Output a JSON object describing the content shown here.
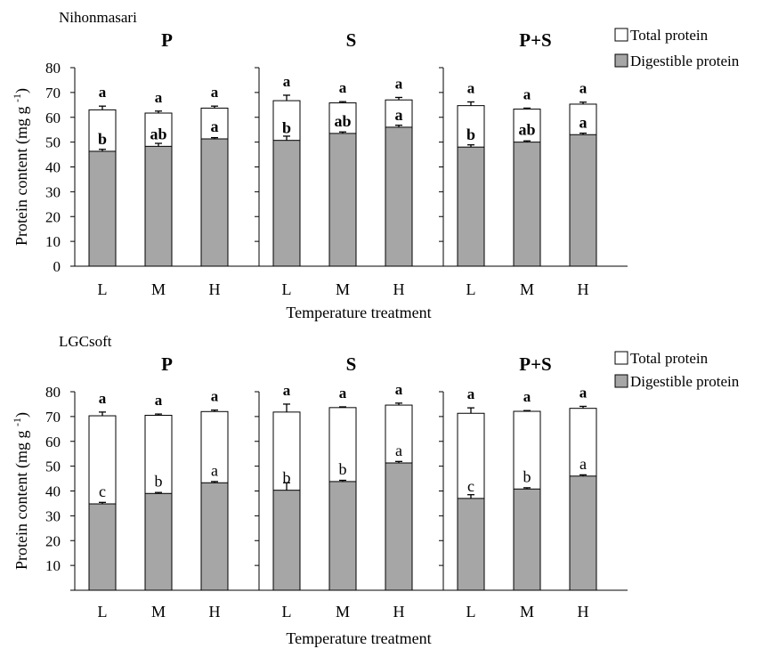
{
  "legend": {
    "total_label": "Total protein",
    "digestible_label": "Digestible protein",
    "total_color": "#ffffff",
    "digestible_color": "#a6a6a6"
  },
  "chart_data": [
    {
      "type": "bar",
      "stacked": "overlay",
      "cultivar": "Nihonmasari",
      "xlabel": "Temperature treatment",
      "ylabel": "Protein content (mg g-1)",
      "ylim": [
        0,
        80
      ],
      "yticks": [
        0,
        10,
        20,
        30,
        40,
        50,
        60,
        70,
        80
      ],
      "categories": [
        "L",
        "M",
        "H"
      ],
      "panels": [
        {
          "title": "P",
          "total": [
            63,
            61.7,
            63.7
          ],
          "total_err": [
            1.5,
            0.8,
            0.8
          ],
          "digestible": [
            46.3,
            48.3,
            51.3
          ],
          "digestible_err": [
            0.8,
            1.2,
            0.5
          ],
          "total_sig": [
            "a",
            "a",
            "a"
          ],
          "digestible_sig": [
            "b",
            "ab",
            "a"
          ]
        },
        {
          "title": "S",
          "total": [
            66.7,
            65.8,
            67
          ],
          "total_err": [
            2.2,
            0.5,
            1
          ],
          "digestible": [
            50.7,
            53.5,
            56
          ],
          "digestible_err": [
            1.7,
            0.6,
            0.8
          ],
          "total_sig": [
            "a",
            "a",
            "a"
          ],
          "digestible_sig": [
            "b",
            "ab",
            "a"
          ]
        },
        {
          "title": "P+S",
          "total": [
            64.7,
            63.3,
            65.3
          ],
          "total_err": [
            1.5,
            0.4,
            0.8
          ],
          "digestible": [
            48,
            50,
            53
          ],
          "digestible_err": [
            0.9,
            0.5,
            0.6
          ],
          "total_sig": [
            "a",
            "a",
            "a"
          ],
          "digestible_sig": [
            "b",
            "ab",
            "a"
          ]
        }
      ]
    },
    {
      "type": "bar",
      "stacked": "overlay",
      "cultivar": "LGCsoft",
      "xlabel": "Temperature treatment",
      "ylabel": "Protein content (mg g-1)",
      "ylim": [
        0,
        80
      ],
      "yticks": [
        10,
        20,
        30,
        40,
        50,
        60,
        70,
        80
      ],
      "categories": [
        "L",
        "M",
        "H"
      ],
      "panels": [
        {
          "title": "P",
          "total": [
            70.3,
            70.5,
            72
          ],
          "total_err": [
            1.5,
            0.5,
            0.6
          ],
          "digestible": [
            34.8,
            39,
            43.3
          ],
          "digestible_err": [
            0.6,
            0.4,
            0.5
          ],
          "total_sig": [
            "a",
            "a",
            "a"
          ],
          "digestible_sig": [
            "c",
            "b",
            "a"
          ]
        },
        {
          "title": "S",
          "total": [
            71.8,
            73.6,
            74.6
          ],
          "total_err": [
            3.2,
            0.3,
            0.8
          ],
          "digestible": [
            40.3,
            43.8,
            51.3
          ],
          "digestible_err": [
            3,
            0.5,
            0.6
          ],
          "total_sig": [
            "a",
            "a",
            "a"
          ],
          "digestible_sig": [
            "b",
            "b",
            "a"
          ]
        },
        {
          "title": "P+S",
          "total": [
            71.3,
            72.1,
            73.3
          ],
          "total_err": [
            2.2,
            0.3,
            0.8
          ],
          "digestible": [
            37,
            40.8,
            46
          ],
          "digestible_err": [
            1.5,
            0.5,
            0.5
          ],
          "total_sig": [
            "a",
            "a",
            "a"
          ],
          "digestible_sig": [
            "c",
            "b",
            "a"
          ]
        }
      ]
    }
  ]
}
